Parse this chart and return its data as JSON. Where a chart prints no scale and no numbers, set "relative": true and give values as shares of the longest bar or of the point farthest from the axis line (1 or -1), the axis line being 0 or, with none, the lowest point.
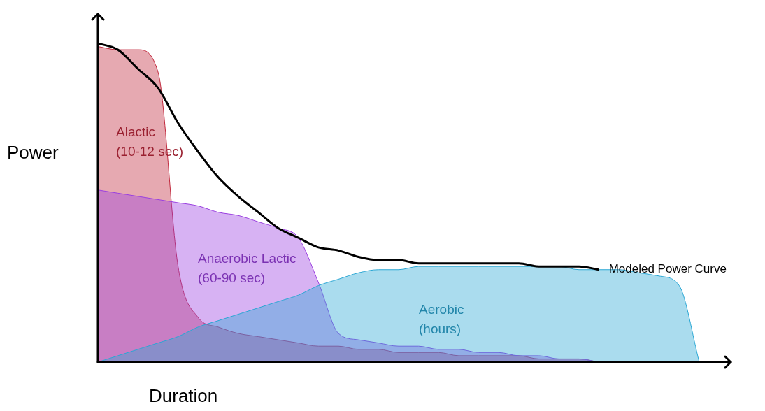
{
  "chart_data": {
    "type": "area",
    "relative": true,
    "xlabel": "Duration",
    "ylabel": "Power",
    "tick_labels": false,
    "legend": false,
    "categories": [
      null,
      null,
      null,
      null,
      null,
      null,
      null,
      null,
      null,
      null,
      null,
      null,
      null,
      null,
      null,
      null,
      null,
      null,
      null,
      null,
      null,
      null,
      null,
      null,
      null,
      null,
      null,
      null,
      null,
      null,
      null
    ],
    "series": [
      {
        "name": "Alactic (10-12 sec)",
        "color": "#c0283c",
        "values": [
          0.99,
          0.98,
          0.98,
          0.91,
          0.3,
          0.14,
          0.11,
          0.09,
          0.08,
          0.07,
          0.06,
          0.05,
          0.05,
          0.04,
          0.04,
          0.03,
          0.03,
          0.03,
          0.02,
          0.02,
          0.02,
          0.02,
          0.01,
          0.01,
          0.01,
          0,
          null,
          null,
          null,
          null,
          null
        ]
      },
      {
        "name": "Anaerobic Lactic (60-90 sec)",
        "color": "#9a3fe0",
        "values": [
          0.54,
          0.53,
          0.52,
          0.51,
          0.5,
          0.49,
          0.47,
          0.46,
          0.44,
          0.42,
          0.39,
          0.25,
          0.09,
          0.07,
          0.06,
          0.05,
          0.05,
          0.04,
          0.04,
          0.03,
          0.03,
          0.02,
          0.02,
          0.01,
          0.01,
          0,
          null,
          null,
          null,
          null,
          null
        ]
      },
      {
        "name": "Aerobic (hours)",
        "color": "#2aa7d4",
        "values": [
          0,
          0.02,
          0.04,
          0.06,
          0.08,
          0.11,
          0.13,
          0.15,
          0.17,
          0.19,
          0.21,
          0.24,
          0.26,
          0.28,
          0.29,
          0.29,
          0.3,
          0.3,
          0.3,
          0.3,
          0.3,
          0.3,
          0.3,
          0.3,
          0.29,
          0.29,
          0.29,
          0.28,
          0.27,
          0.24,
          0
        ]
      },
      {
        "name": "Modeled Power Curve",
        "type": "line",
        "color": "#000000",
        "values": [
          1,
          0.98,
          0.92,
          0.86,
          0.75,
          0.66,
          0.58,
          0.52,
          0.47,
          0.42,
          0.39,
          0.36,
          0.35,
          0.33,
          0.32,
          0.32,
          0.31,
          0.31,
          0.31,
          0.31,
          0.31,
          0.31,
          0.3,
          0.3,
          0.3,
          0.29,
          null,
          null,
          null,
          null,
          null
        ]
      }
    ]
  }
}
